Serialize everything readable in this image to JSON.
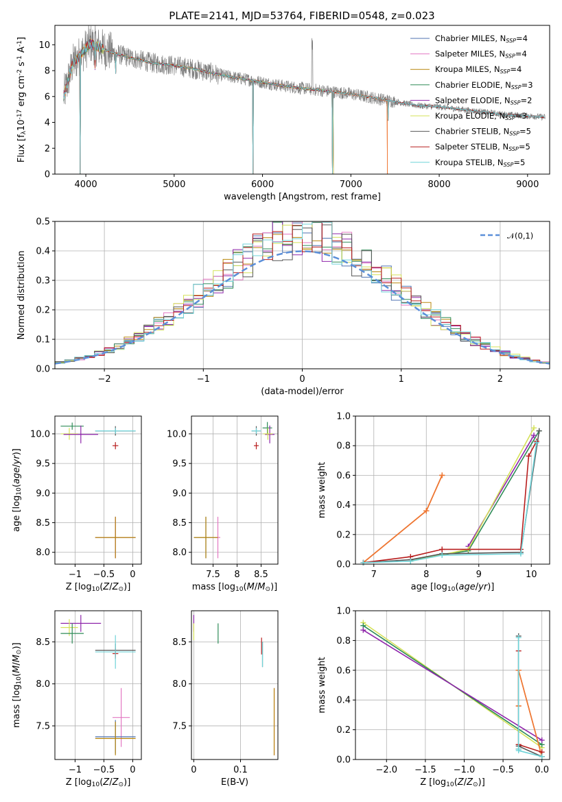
{
  "figure": {
    "title": "PLATE=2141, MJD=53764, FIBERID=0548, z=0.023",
    "colors": {
      "Chabrier MILES": "#4c72b0",
      "Salpeter MILES": "#e377c2",
      "Kroupa MILES": "#b8860b",
      "Chabrier ELODIE": "#2e8b57",
      "Salpeter ELODIE": "#8e24aa",
      "Kroupa ELODIE": "#d4e157",
      "Chabrier STELIB": "#555555",
      "Salpeter STELIB": "#b71c1c",
      "Kroupa STELIB": "#6fd3d8",
      "data": "#808080",
      "MILES fit": "#ee7733",
      "normal": "#5b8fd9"
    },
    "legend_items": [
      "Chabrier MILES, N$_{SSP}$=4",
      "Salpeter MILES, N$_{SSP}$=4",
      "Kroupa MILES, N$_{SSP}$=4",
      "Chabrier ELODIE, N$_{SSP}$=3",
      "Salpeter ELODIE, N$_{SSP}$=2",
      "Kroupa ELODIE, N$_{SSP}$=3",
      "Chabrier STELIB, N$_{SSP}$=5",
      "Salpeter STELIB, N$_{SSP}$=5",
      "Kroupa STELIB, N$_{SSP}$=5"
    ]
  },
  "chart_data": [
    {
      "id": "spectrum",
      "type": "line",
      "xlabel": "wavelength [Angstrom, rest frame]",
      "ylabel": "Flux [f$_\\lambda$10$^{-17}$ erg cm$^{-2}$ s$^{-1}$ A$^{-1}$]",
      "xlim": [
        3650,
        9250
      ],
      "ylim": [
        0,
        11.5
      ],
      "xticks": [
        4000,
        5000,
        6000,
        7000,
        8000,
        9000
      ],
      "yticks": [
        0,
        2,
        4,
        6,
        8,
        10
      ],
      "continuum": {
        "x": [
          3750,
          3850,
          3950,
          4050,
          4150,
          4300,
          4500,
          4750,
          5000,
          5250,
          5500,
          5750,
          6000,
          6250,
          6500,
          6750,
          7000,
          7250,
          7500,
          7750,
          8000,
          8250,
          8500,
          8750,
          9000,
          9200
        ],
        "y": [
          6.0,
          8.5,
          9.3,
          10.1,
          9.8,
          9.4,
          9.0,
          8.6,
          8.4,
          8.1,
          7.7,
          7.4,
          7.1,
          6.8,
          6.6,
          6.4,
          6.2,
          5.9,
          5.6,
          5.3,
          5.2,
          5.0,
          4.8,
          4.6,
          4.5,
          4.4
        ]
      },
      "absorption_lines": [
        3934,
        4102,
        4340,
        5890,
        6790,
        7420
      ],
      "emission_lines": [
        6563
      ],
      "series": [
        {
          "name": "Chabrier MILES, N$_{SSP}$=4",
          "x_max": 7410
        },
        {
          "name": "Salpeter MILES, N$_{SSP}$=4",
          "x_max": 7410
        },
        {
          "name": "Kroupa MILES, N$_{SSP}$=4",
          "x_max": 7410
        },
        {
          "name": "Chabrier ELODIE, N$_{SSP}$=3",
          "x_max": 6800
        },
        {
          "name": "Salpeter ELODIE, N$_{SSP}$=2",
          "x_max": 6800
        },
        {
          "name": "Kroupa ELODIE, N$_{SSP}$=3",
          "x_max": 6800
        },
        {
          "name": "Chabrier STELIB, N$_{SSP}$=5",
          "x_max": 9200
        },
        {
          "name": "Salpeter STELIB, N$_{SSP}$=5",
          "x_max": 9200
        },
        {
          "name": "Kroupa STELIB, N$_{SSP}$=5",
          "x_max": 9200
        }
      ]
    },
    {
      "id": "residuals",
      "type": "line",
      "xlabel": "(data-model)/error",
      "ylabel": "Normed distribution",
      "xlim": [
        -2.5,
        2.5
      ],
      "ylim": [
        0,
        0.5
      ],
      "xticks": [
        -2,
        -1,
        0,
        1,
        2
      ],
      "yticks": [
        0.0,
        0.1,
        0.2,
        0.3,
        0.4,
        0.5
      ],
      "bin_width": 0.1,
      "normal_label": "$\\mathcal{N}(0,1)$",
      "grid": true
    },
    {
      "id": "age_vs_Z",
      "type": "scatter",
      "xlabel": "Z [log$_{10}$($Z/Z_\\odot$)]",
      "ylabel": "age  [log$_{10}$($age/yr$)]",
      "xlim": [
        -1.35,
        0.15
      ],
      "ylim": [
        7.8,
        10.3
      ],
      "xticks": [
        -1,
        -0.5,
        0
      ],
      "yticks": [
        8.0,
        8.5,
        9.0,
        9.5,
        10.0
      ],
      "points": [
        {
          "s": "Kroupa ELODIE",
          "x": -1.1,
          "y": 10.0,
          "xerr": 0.15,
          "yerr": 0.1
        },
        {
          "s": "Chabrier ELODIE",
          "x": -1.05,
          "y": 10.13,
          "xerr": 0.2,
          "yerr": 0.06
        },
        {
          "s": "Salpeter ELODIE",
          "x": -0.9,
          "y": 9.99,
          "xerr": 0.3,
          "yerr": 0.15
        },
        {
          "s": "Chabrier STELIB",
          "x": -0.3,
          "y": 10.05,
          "xerr": 0.35,
          "yerr": 0.08
        },
        {
          "s": "Salpeter STELIB",
          "x": -0.3,
          "y": 9.8,
          "xerr": 0.05,
          "yerr": 0.06
        },
        {
          "s": "Chabrier MILES",
          "x": -0.3,
          "y": 8.25,
          "xerr": 0.35,
          "yerr": 0.35
        },
        {
          "s": "Salpeter MILES",
          "x": -0.3,
          "y": 8.25,
          "xerr": 0.35,
          "yerr": 0.35
        },
        {
          "s": "Kroupa MILES",
          "x": -0.3,
          "y": 8.25,
          "xerr": 0.35,
          "yerr": 0.35
        },
        {
          "s": "Kroupa STELIB",
          "x": -0.3,
          "y": 10.05,
          "xerr": 0.35,
          "yerr": 0.05
        }
      ],
      "grid": true
    },
    {
      "id": "age_vs_mass",
      "type": "scatter",
      "xlabel": "mass [log$_{10}$($M/M_\\odot$)]",
      "ylabel": "",
      "xlim": [
        7.05,
        8.85
      ],
      "ylim": [
        7.8,
        10.3
      ],
      "xticks": [
        7.5,
        8.0,
        8.5
      ],
      "yticks": [
        8.0,
        8.5,
        9.0,
        9.5,
        10.0
      ],
      "points": [
        {
          "s": "Chabrier MILES",
          "x": 7.35,
          "y": 8.25,
          "xerr": 0.25,
          "yerr": 0.35
        },
        {
          "s": "Salpeter MILES",
          "x": 7.6,
          "y": 8.25,
          "xerr": 0.05,
          "yerr": 0.35
        },
        {
          "s": "Kroupa MILES",
          "x": 7.35,
          "y": 8.25,
          "xerr": 0.25,
          "yerr": 0.35
        },
        {
          "s": "Chabrier ELODIE",
          "x": 8.63,
          "y": 10.1,
          "xerr": 0.1,
          "yerr": 0.1
        },
        {
          "s": "Salpeter ELODIE",
          "x": 8.68,
          "y": 9.99,
          "xerr": 0.1,
          "yerr": 0.15
        },
        {
          "s": "Kroupa ELODIE",
          "x": 8.64,
          "y": 10.0,
          "xerr": 0.1,
          "yerr": 0.1
        },
        {
          "s": "Chabrier STELIB",
          "x": 8.4,
          "y": 10.05,
          "xerr": 0.1,
          "yerr": 0.08
        },
        {
          "s": "Salpeter STELIB",
          "x": 8.4,
          "y": 9.8,
          "xerr": 0.05,
          "yerr": 0.06
        },
        {
          "s": "Kroupa STELIB",
          "x": 8.4,
          "y": 10.05,
          "xerr": 0.1,
          "yerr": 0.05
        }
      ],
      "grid": true
    },
    {
      "id": "massweight_vs_age",
      "type": "line",
      "xlabel": "age  [log$_{10}$($age/yr$)]",
      "ylabel": "mass weight",
      "xlim": [
        6.65,
        10.35
      ],
      "ylim": [
        0,
        1.0
      ],
      "xticks": [
        7,
        8,
        9,
        10
      ],
      "yticks": [
        0.0,
        0.2,
        0.4,
        0.6,
        0.8,
        1.0
      ],
      "series": [
        {
          "s": "Chabrier MILES",
          "x": [
            6.8,
            8.0,
            8.3
          ],
          "y": [
            0.01,
            0.36,
            0.6
          ]
        },
        {
          "s": "Salpeter MILES",
          "x": [
            6.8,
            8.0,
            8.3
          ],
          "y": [
            0.01,
            0.36,
            0.6
          ]
        },
        {
          "s": "Kroupa MILES",
          "x": [
            6.8,
            8.0,
            8.3
          ],
          "y": [
            0.01,
            0.36,
            0.6
          ]
        },
        {
          "s": "Chabrier ELODIE",
          "x": [
            7.7,
            8.8,
            10.15
          ],
          "y": [
            0.03,
            0.09,
            0.9
          ]
        },
        {
          "s": "Salpeter ELODIE",
          "x": [
            8.8,
            10.05
          ],
          "y": [
            0.12,
            0.87
          ]
        },
        {
          "s": "Kroupa ELODIE",
          "x": [
            7.7,
            8.8,
            10.05
          ],
          "y": [
            0.02,
            0.1,
            0.92
          ]
        },
        {
          "s": "Chabrier STELIB",
          "x": [
            6.8,
            7.7,
            8.3,
            9.8,
            10.15
          ],
          "y": [
            0.01,
            0.03,
            0.07,
            0.08,
            0.9
          ]
        },
        {
          "s": "Salpeter STELIB",
          "x": [
            6.8,
            7.7,
            8.3,
            9.8,
            9.95,
            10.1
          ],
          "y": [
            0.01,
            0.05,
            0.1,
            0.1,
            0.73,
            0.83
          ]
        },
        {
          "s": "Kroupa STELIB",
          "x": [
            6.8,
            7.7,
            8.3,
            9.8,
            10.1
          ],
          "y": [
            0.01,
            0.02,
            0.06,
            0.07,
            0.82
          ]
        }
      ],
      "grid": true
    },
    {
      "id": "mass_vs_Z",
      "type": "scatter",
      "xlabel": "Z [log$_{10}$($Z/Z_\\odot$)]",
      "ylabel": "mass [log$_{10}$($M/M_\\odot$)]",
      "xlim": [
        -1.35,
        0.15
      ],
      "ylim": [
        7.1,
        8.87
      ],
      "xticks": [
        -1,
        -0.5,
        0
      ],
      "yticks": [
        7.5,
        8.0,
        8.5
      ],
      "points": [
        {
          "s": "Salpeter ELODIE",
          "x": -0.9,
          "y": 8.72,
          "xerr": 0.35,
          "yerr": 0.1
        },
        {
          "s": "Kroupa ELODIE",
          "x": -1.1,
          "y": 8.67,
          "xerr": 0.15,
          "yerr": 0.1
        },
        {
          "s": "Chabrier ELODIE",
          "x": -1.05,
          "y": 8.6,
          "xerr": 0.2,
          "yerr": 0.12
        },
        {
          "s": "Chabrier STELIB",
          "x": -0.3,
          "y": 8.4,
          "xerr": 0.35,
          "yerr": 0.08
        },
        {
          "s": "Salpeter STELIB",
          "x": -0.3,
          "y": 8.36,
          "xerr": 0.05,
          "yerr": 0.06
        },
        {
          "s": "Kroupa STELIB",
          "x": -0.3,
          "y": 8.38,
          "xerr": 0.35,
          "yerr": 0.2
        },
        {
          "s": "Salpeter MILES",
          "x": -0.2,
          "y": 7.6,
          "xerr": 0.15,
          "yerr": 0.35
        },
        {
          "s": "Chabrier MILES",
          "x": -0.3,
          "y": 7.37,
          "xerr": 0.35,
          "yerr": 0.2
        },
        {
          "s": "Kroupa MILES",
          "x": -0.3,
          "y": 7.35,
          "xerr": 0.35,
          "yerr": 0.2
        }
      ],
      "grid": true
    },
    {
      "id": "mass_vs_EBV",
      "type": "scatter",
      "xlabel": "E(B-V)",
      "ylabel": "",
      "xlim": [
        -0.005,
        0.18
      ],
      "ylim": [
        7.1,
        8.87
      ],
      "xticks": [
        0.0,
        0.1
      ],
      "yticks": [
        7.5,
        8.0,
        8.5
      ],
      "points": [
        {
          "s": "Salpeter ELODIE",
          "x": 0.0,
          "y": 8.72,
          "xerr": 0,
          "yerr": 0.1
        },
        {
          "s": "Kroupa ELODIE",
          "x": 0.0,
          "y": 8.62,
          "xerr": 0,
          "yerr": 0.1
        },
        {
          "s": "Chabrier ELODIE",
          "x": 0.052,
          "y": 8.6,
          "xerr": 0,
          "yerr": 0.12
        },
        {
          "s": "Salpeter STELIB",
          "x": 0.145,
          "y": 8.45,
          "xerr": 0,
          "yerr": 0.1
        },
        {
          "s": "Chabrier STELIB",
          "x": 0.147,
          "y": 8.35,
          "xerr": 0,
          "yerr": 0.15
        },
        {
          "s": "Kroupa STELIB",
          "x": 0.147,
          "y": 8.35,
          "xerr": 0,
          "yerr": 0.15
        },
        {
          "s": "Salpeter MILES",
          "x": 0.172,
          "y": 7.55,
          "xerr": 0,
          "yerr": 0.4
        },
        {
          "s": "Kroupa MILES",
          "x": 0.172,
          "y": 7.55,
          "xerr": 0,
          "yerr": 0.4
        }
      ],
      "grid": true
    },
    {
      "id": "massweight_vs_Z",
      "type": "line",
      "xlabel": "Z [log$_{10}$($Z/Z_\\odot$)]",
      "ylabel": "mass weight",
      "xlim": [
        -2.4,
        0.1
      ],
      "ylim": [
        0,
        1.0
      ],
      "xticks": [
        -2.0,
        -1.5,
        -1.0,
        -0.5,
        0.0
      ],
      "yticks": [
        0.0,
        0.2,
        0.4,
        0.6,
        0.8,
        1.0
      ],
      "series": [
        {
          "s": "Kroupa ELODIE",
          "x": [
            -2.3,
            0.0
          ],
          "y": [
            0.92,
            0.08
          ]
        },
        {
          "s": "Chabrier ELODIE",
          "x": [
            -2.3,
            0.0
          ],
          "y": [
            0.9,
            0.1
          ]
        },
        {
          "s": "Salpeter ELODIE",
          "x": [
            -2.3,
            0.0
          ],
          "y": [
            0.87,
            0.13
          ]
        },
        {
          "s": "Chabrier MILES",
          "x": [
            -0.3,
            -0.3,
            -0.3,
            0.0
          ],
          "y": [
            0.6,
            0.36,
            0.6,
            0.02
          ]
        },
        {
          "s": "Kroupa MILES",
          "x": [
            -0.3,
            -0.3,
            -0.3,
            0.0
          ],
          "y": [
            0.6,
            0.36,
            0.6,
            0.02
          ]
        },
        {
          "s": "Salpeter STELIB",
          "x": [
            -0.3,
            -0.3,
            -0.3,
            0.0
          ],
          "y": [
            0.1,
            0.73,
            0.1,
            0.05
          ]
        },
        {
          "s": "Chabrier STELIB",
          "x": [
            -0.3,
            -0.3,
            -0.3,
            0.0
          ],
          "y": [
            0.83,
            0.07,
            0.09,
            0.02
          ]
        },
        {
          "s": "Kroupa STELIB",
          "x": [
            -0.3,
            -0.3,
            -0.3,
            0.0
          ],
          "y": [
            0.82,
            0.07,
            0.06,
            0.02
          ]
        }
      ],
      "grid": true
    }
  ]
}
